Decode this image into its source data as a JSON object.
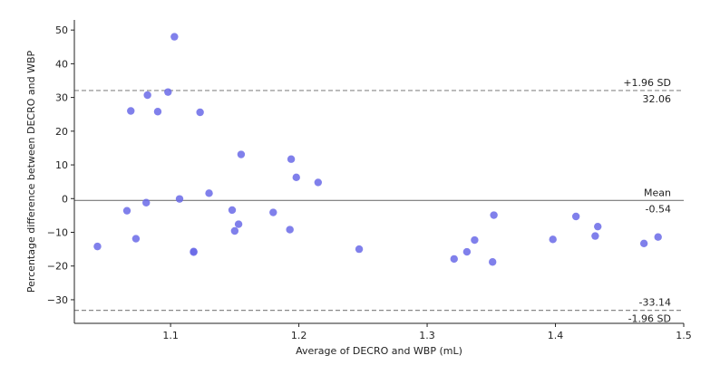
{
  "chart_data": {
    "type": "scatter",
    "xlabel": "Average of DECRO and WBP (mL)",
    "ylabel": "Percentage difference between DECRO and WBP",
    "xlim": [
      1.025,
      1.5
    ],
    "ylim": [
      -37,
      53
    ],
    "xticks": [
      1.1,
      1.2,
      1.3,
      1.4,
      1.5
    ],
    "xtick_labels": [
      "1.1",
      "1.2",
      "1.3",
      "1.4",
      "1.5"
    ],
    "yticks": [
      -30,
      -20,
      -10,
      0,
      10,
      20,
      30,
      40,
      50
    ],
    "ytick_labels": [
      "−30",
      "−20",
      "−10",
      "0",
      "10",
      "20",
      "30",
      "40",
      "50"
    ],
    "grid": false,
    "point_color": "#6a6ae8",
    "points": [
      {
        "x": 1.043,
        "y": -14.2
      },
      {
        "x": 1.066,
        "y": -3.6
      },
      {
        "x": 1.069,
        "y": 26.0
      },
      {
        "x": 1.073,
        "y": -11.9
      },
      {
        "x": 1.081,
        "y": -1.2
      },
      {
        "x": 1.082,
        "y": 30.7
      },
      {
        "x": 1.09,
        "y": 25.8
      },
      {
        "x": 1.098,
        "y": 31.6
      },
      {
        "x": 1.103,
        "y": 48.0
      },
      {
        "x": 1.107,
        "y": -0.1
      },
      {
        "x": 1.118,
        "y": -15.7
      },
      {
        "x": 1.118,
        "y": -15.9
      },
      {
        "x": 1.123,
        "y": 25.6
      },
      {
        "x": 1.13,
        "y": 1.6
      },
      {
        "x": 1.148,
        "y": -3.4
      },
      {
        "x": 1.15,
        "y": -9.6
      },
      {
        "x": 1.153,
        "y": -7.6
      },
      {
        "x": 1.155,
        "y": 13.1
      },
      {
        "x": 1.18,
        "y": -4.1
      },
      {
        "x": 1.193,
        "y": -9.2
      },
      {
        "x": 1.194,
        "y": 11.7
      },
      {
        "x": 1.198,
        "y": 6.3
      },
      {
        "x": 1.215,
        "y": 4.8
      },
      {
        "x": 1.247,
        "y": -15.0
      },
      {
        "x": 1.321,
        "y": -17.9
      },
      {
        "x": 1.331,
        "y": -15.8
      },
      {
        "x": 1.337,
        "y": -12.3
      },
      {
        "x": 1.351,
        "y": -18.8
      },
      {
        "x": 1.352,
        "y": -4.9
      },
      {
        "x": 1.398,
        "y": -12.1
      },
      {
        "x": 1.416,
        "y": -5.3
      },
      {
        "x": 1.431,
        "y": -11.1
      },
      {
        "x": 1.433,
        "y": -8.3
      },
      {
        "x": 1.469,
        "y": -13.3
      },
      {
        "x": 1.48,
        "y": -11.4
      }
    ],
    "reference_lines": [
      {
        "name": "upper",
        "y": 32.06,
        "style": "dashed",
        "label": "+1.96 SD",
        "value_label": "32.06"
      },
      {
        "name": "mean",
        "y": -0.54,
        "style": "solid",
        "label": "Mean",
        "value_label": "-0.54"
      },
      {
        "name": "lower",
        "y": -33.14,
        "style": "dashed",
        "label": "-1.96 SD",
        "value_label": "-33.14"
      }
    ]
  }
}
